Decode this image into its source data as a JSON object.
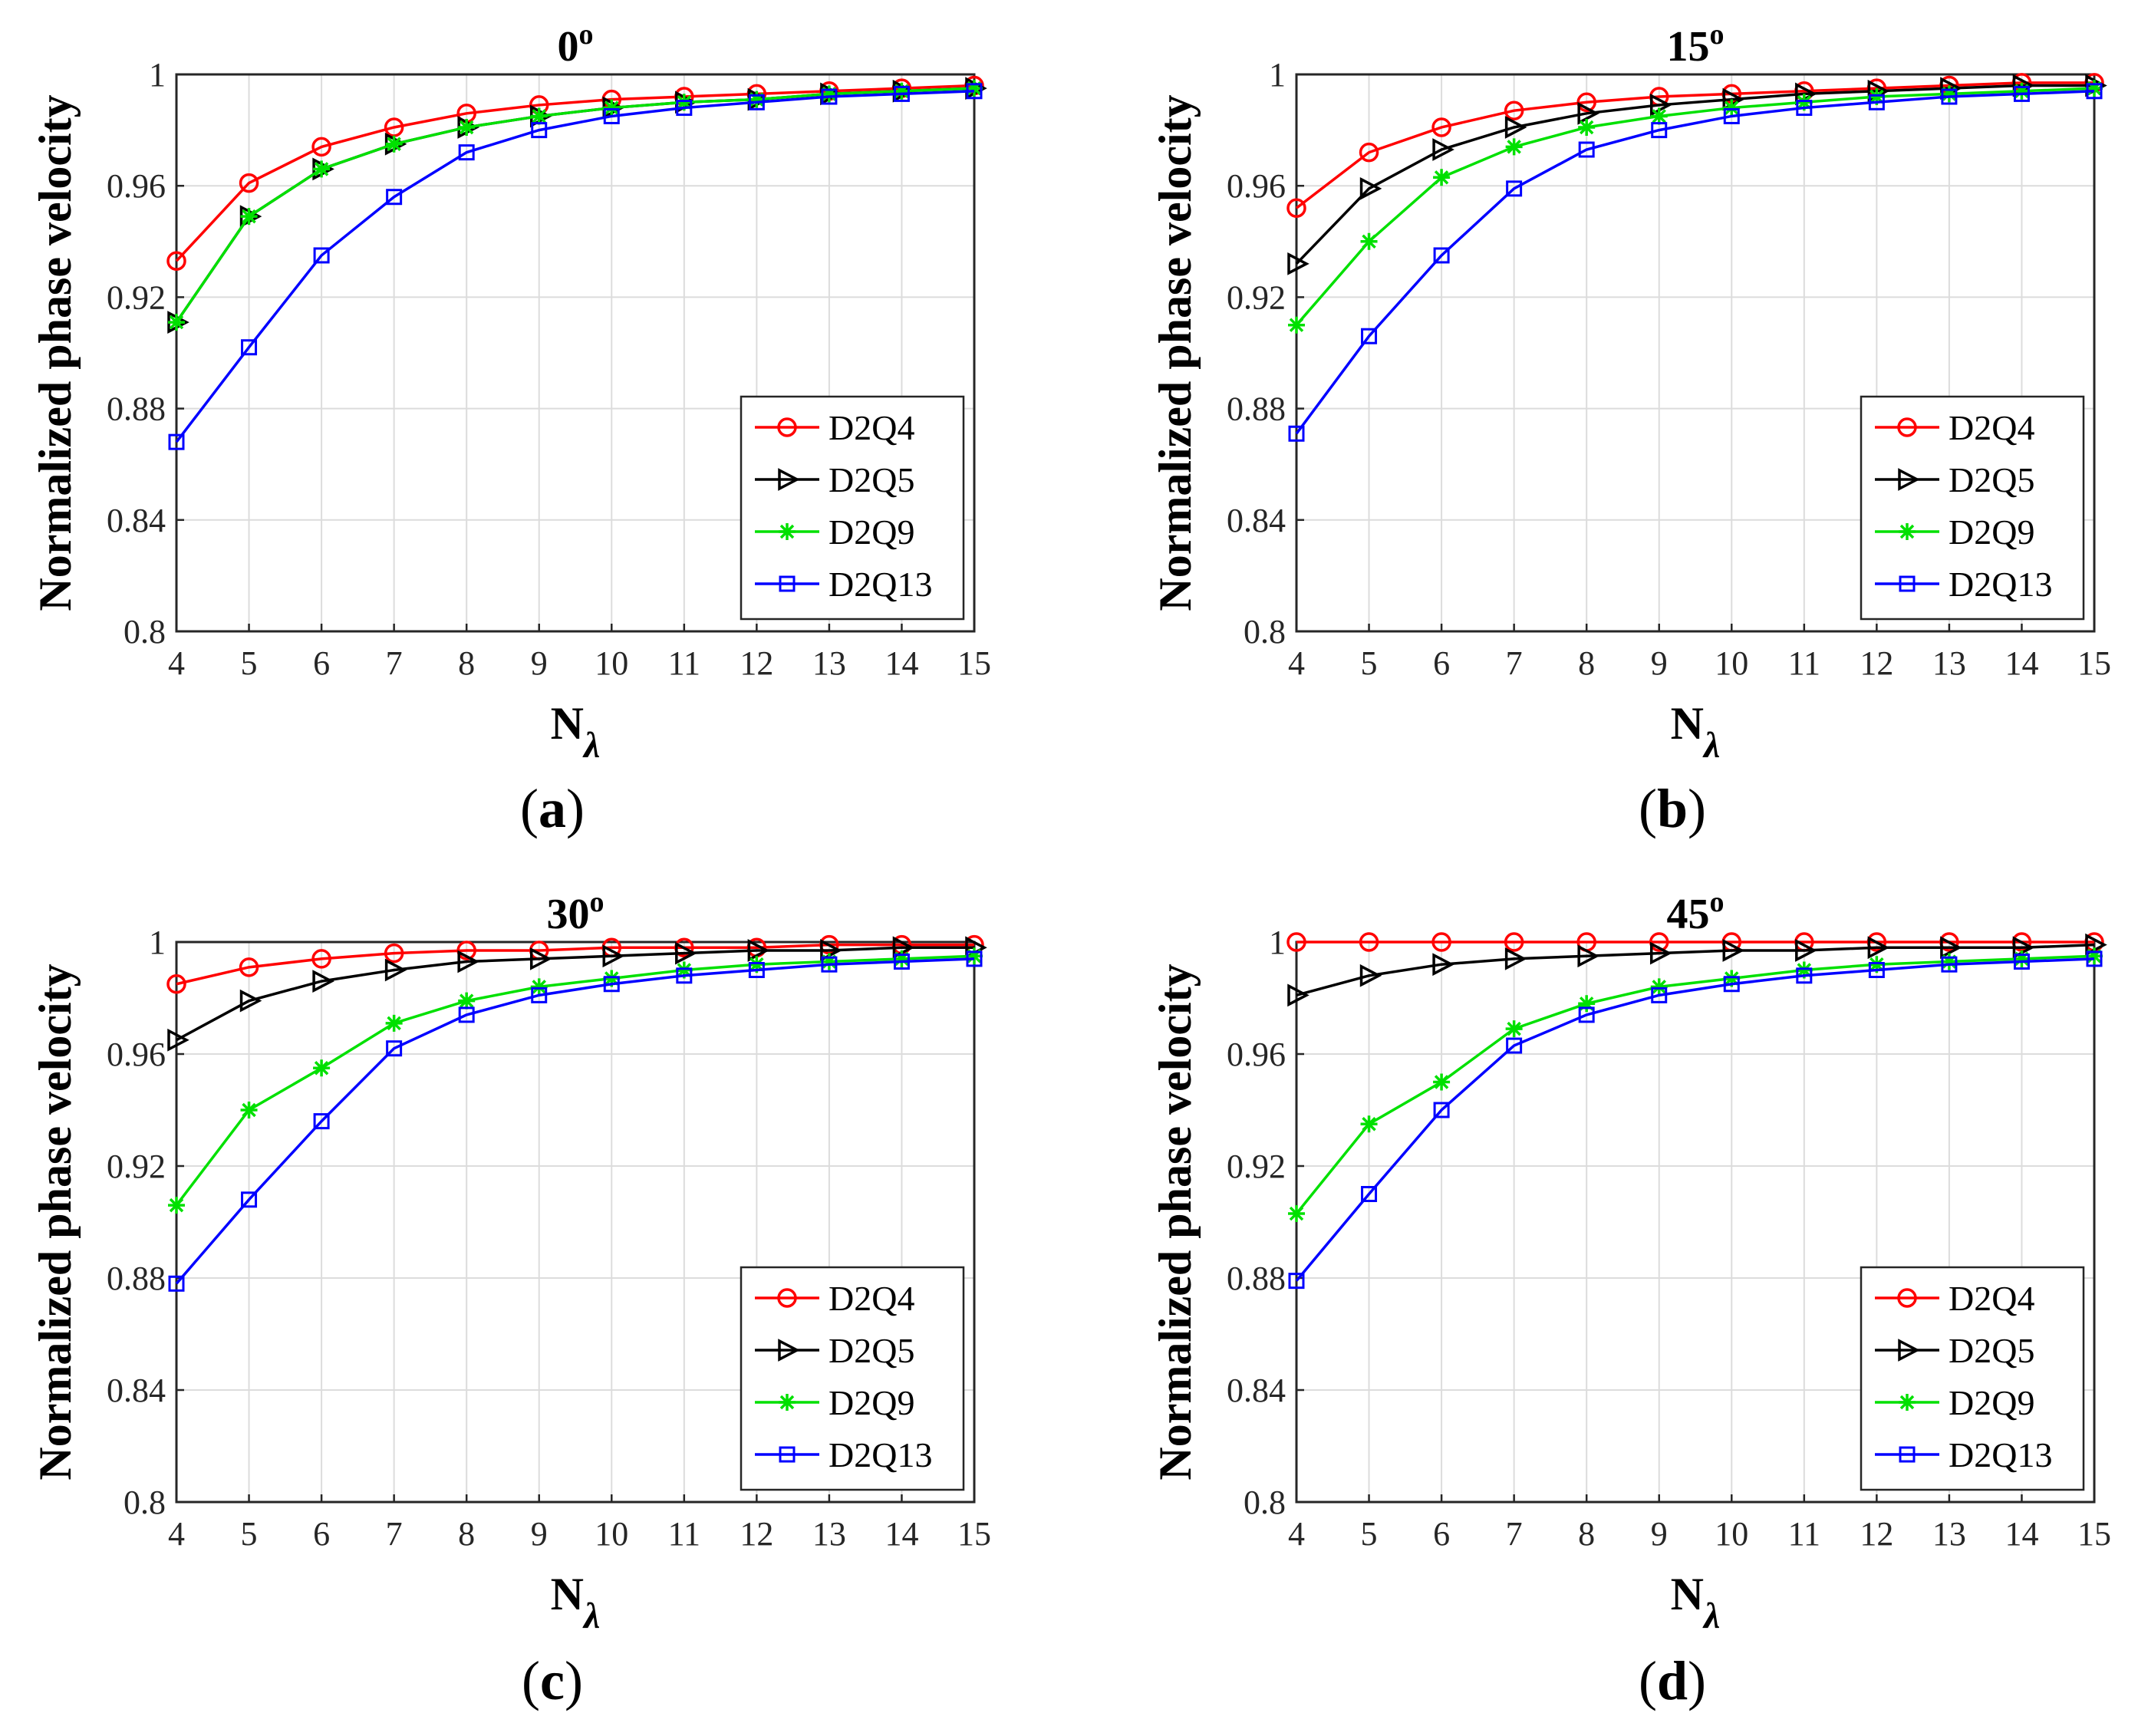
{
  "figure": {
    "axis_ylabel": "Normalized phase velocity",
    "axis_xlabel_main": "N",
    "axis_xlabel_sub": "λ",
    "panel_labels": [
      {
        "open": "(",
        "letter": "a",
        "close": ")"
      },
      {
        "open": "(",
        "letter": "b",
        "close": ")"
      },
      {
        "open": "(",
        "letter": "c",
        "close": ")"
      },
      {
        "open": "(",
        "letter": "d",
        "close": ")"
      }
    ],
    "series_styles": [
      {
        "name": "D2Q4",
        "color": "#ff0000",
        "marker": "circle"
      },
      {
        "name": "D2Q5",
        "color": "#000000",
        "marker": "triangle-right"
      },
      {
        "name": "D2Q9",
        "color": "#00e000",
        "marker": "asterisk"
      },
      {
        "name": "D2Q13",
        "color": "#0000ff",
        "marker": "square"
      }
    ]
  },
  "chart_data": [
    {
      "type": "line",
      "title": "0",
      "title_sup": "o",
      "xlabel": "N_λ",
      "ylabel": "Normalized phase velocity",
      "x": [
        4,
        5,
        6,
        7,
        8,
        9,
        10,
        11,
        12,
        13,
        14,
        15
      ],
      "xlim": [
        4,
        15
      ],
      "ylim": [
        0.8,
        1
      ],
      "xticks": [
        "4",
        "5",
        "6",
        "7",
        "8",
        "9",
        "10",
        "11",
        "12",
        "13",
        "14",
        "15"
      ],
      "yticks": [
        "0.8",
        "0.84",
        "0.88",
        "0.92",
        "0.96",
        "1"
      ],
      "grid": true,
      "legend": "bottom-right",
      "series": [
        {
          "name": "D2Q4",
          "values": [
            0.933,
            0.961,
            0.974,
            0.981,
            0.986,
            0.989,
            0.991,
            0.992,
            0.993,
            0.994,
            0.995,
            0.996
          ]
        },
        {
          "name": "D2Q5",
          "values": [
            0.911,
            0.949,
            0.966,
            0.975,
            0.981,
            0.985,
            0.988,
            0.99,
            0.991,
            0.993,
            0.994,
            0.995
          ]
        },
        {
          "name": "D2Q9",
          "values": [
            0.911,
            0.949,
            0.966,
            0.975,
            0.981,
            0.985,
            0.988,
            0.99,
            0.991,
            0.993,
            0.994,
            0.995
          ]
        },
        {
          "name": "D2Q13",
          "values": [
            0.868,
            0.902,
            0.935,
            0.956,
            0.972,
            0.98,
            0.985,
            0.988,
            0.99,
            0.992,
            0.993,
            0.994
          ]
        }
      ]
    },
    {
      "type": "line",
      "title": "15",
      "title_sup": "o",
      "xlabel": "N_λ",
      "ylabel": "Normalized phase velocity",
      "x": [
        4,
        5,
        6,
        7,
        8,
        9,
        10,
        11,
        12,
        13,
        14,
        15
      ],
      "xlim": [
        4,
        15
      ],
      "ylim": [
        0.8,
        1
      ],
      "xticks": [
        "4",
        "5",
        "6",
        "7",
        "8",
        "9",
        "10",
        "11",
        "12",
        "13",
        "14",
        "15"
      ],
      "yticks": [
        "0.8",
        "0.84",
        "0.88",
        "0.92",
        "0.96",
        "1"
      ],
      "grid": true,
      "legend": "bottom-right",
      "series": [
        {
          "name": "D2Q4",
          "values": [
            0.952,
            0.972,
            0.981,
            0.987,
            0.99,
            0.992,
            0.993,
            0.994,
            0.995,
            0.996,
            0.997,
            0.997
          ]
        },
        {
          "name": "D2Q5",
          "values": [
            0.932,
            0.959,
            0.973,
            0.981,
            0.986,
            0.989,
            0.991,
            0.993,
            0.994,
            0.995,
            0.996,
            0.996
          ]
        },
        {
          "name": "D2Q9",
          "values": [
            0.91,
            0.94,
            0.963,
            0.974,
            0.981,
            0.985,
            0.988,
            0.99,
            0.992,
            0.993,
            0.994,
            0.995
          ]
        },
        {
          "name": "D2Q13",
          "values": [
            0.871,
            0.906,
            0.935,
            0.959,
            0.973,
            0.98,
            0.985,
            0.988,
            0.99,
            0.992,
            0.993,
            0.994
          ]
        }
      ]
    },
    {
      "type": "line",
      "title": "30",
      "title_sup": "o",
      "xlabel": "N_λ",
      "ylabel": "Normalized phase velocity",
      "x": [
        4,
        5,
        6,
        7,
        8,
        9,
        10,
        11,
        12,
        13,
        14,
        15
      ],
      "xlim": [
        4,
        15
      ],
      "ylim": [
        0.8,
        1
      ],
      "xticks": [
        "4",
        "5",
        "6",
        "7",
        "8",
        "9",
        "10",
        "11",
        "12",
        "13",
        "14",
        "15"
      ],
      "yticks": [
        "0.8",
        "0.84",
        "0.88",
        "0.92",
        "0.96",
        "1"
      ],
      "grid": true,
      "legend": "bottom-right",
      "series": [
        {
          "name": "D2Q4",
          "values": [
            0.985,
            0.991,
            0.994,
            0.996,
            0.997,
            0.997,
            0.998,
            0.998,
            0.998,
            0.999,
            0.999,
            0.999
          ]
        },
        {
          "name": "D2Q5",
          "values": [
            0.965,
            0.979,
            0.986,
            0.99,
            0.993,
            0.994,
            0.995,
            0.996,
            0.997,
            0.997,
            0.998,
            0.998
          ]
        },
        {
          "name": "D2Q9",
          "values": [
            0.906,
            0.94,
            0.955,
            0.971,
            0.979,
            0.984,
            0.987,
            0.99,
            0.992,
            0.993,
            0.994,
            0.995
          ]
        },
        {
          "name": "D2Q13",
          "values": [
            0.878,
            0.908,
            0.936,
            0.962,
            0.974,
            0.981,
            0.985,
            0.988,
            0.99,
            0.992,
            0.993,
            0.994
          ]
        }
      ]
    },
    {
      "type": "line",
      "title": "45",
      "title_sup": "o",
      "xlabel": "N_λ",
      "ylabel": "Normalized phase velocity",
      "x": [
        4,
        5,
        6,
        7,
        8,
        9,
        10,
        11,
        12,
        13,
        14,
        15
      ],
      "xlim": [
        4,
        15
      ],
      "ylim": [
        0.8,
        1
      ],
      "xticks": [
        "4",
        "5",
        "6",
        "7",
        "8",
        "9",
        "10",
        "11",
        "12",
        "13",
        "14",
        "15"
      ],
      "yticks": [
        "0.8",
        "0.84",
        "0.88",
        "0.92",
        "0.96",
        "1"
      ],
      "grid": true,
      "legend": "bottom-right",
      "series": [
        {
          "name": "D2Q4",
          "values": [
            1,
            1,
            1,
            1,
            1,
            1,
            1,
            1,
            1,
            1,
            1,
            1
          ]
        },
        {
          "name": "D2Q5",
          "values": [
            0.981,
            0.988,
            0.992,
            0.994,
            0.995,
            0.996,
            0.997,
            0.997,
            0.998,
            0.998,
            0.998,
            0.999
          ]
        },
        {
          "name": "D2Q9",
          "values": [
            0.903,
            0.935,
            0.95,
            0.969,
            0.978,
            0.984,
            0.987,
            0.99,
            0.992,
            0.993,
            0.994,
            0.995
          ]
        },
        {
          "name": "D2Q13",
          "values": [
            0.879,
            0.91,
            0.94,
            0.963,
            0.974,
            0.981,
            0.985,
            0.988,
            0.99,
            0.992,
            0.993,
            0.994
          ]
        }
      ]
    }
  ]
}
